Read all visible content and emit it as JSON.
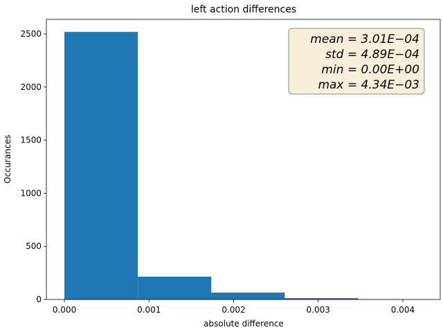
{
  "chart_data": {
    "type": "histogram",
    "title": "left action differences",
    "x_label": "absolute difference",
    "y_label": "Occurances",
    "bins": [
      0,
      0.000868,
      0.001736,
      0.002604,
      0.003472,
      0.00434
    ],
    "values": [
      2519,
      215,
      65,
      13,
      3
    ],
    "color": "#1f77b4",
    "xlim": [
      -0.000213,
      0.004442
    ],
    "xticks": [
      {
        "value": 0,
        "label": "0.000"
      },
      {
        "value": 0.001,
        "label": "0.001"
      },
      {
        "value": 0.002,
        "label": "0.002"
      },
      {
        "value": 0.003,
        "label": "0.003"
      },
      {
        "value": 0.004,
        "label": "0.004"
      }
    ],
    "ylim": [
      0,
      2637
    ],
    "yticks": [
      0,
      500,
      1000,
      1500,
      2000,
      2500
    ],
    "annotation": [
      "mean = 3.01E−04",
      "std = 4.89E−04",
      "min = 0.00E+00",
      "max = 4.34E−03"
    ]
  }
}
